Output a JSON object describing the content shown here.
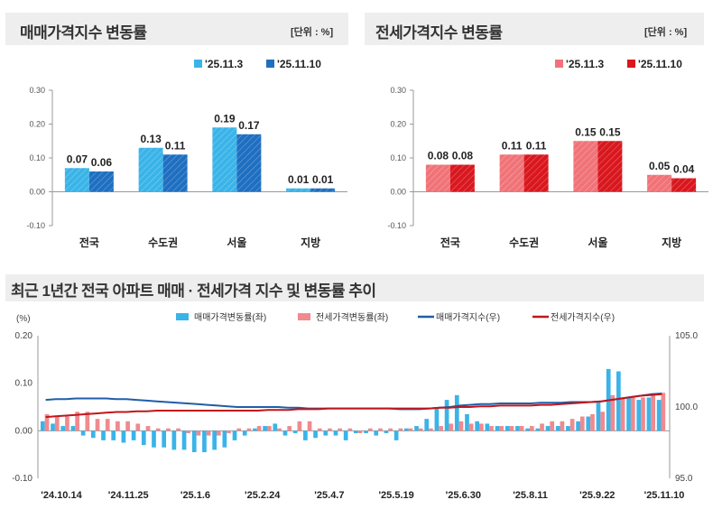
{
  "chart_data": [
    {
      "type": "bar",
      "title": "매매가격지수 변동률",
      "unit_label": "[단위 : %]",
      "categories": [
        "전국",
        "수도권",
        "서울",
        "지방"
      ],
      "ylim": [
        -0.1,
        0.3
      ],
      "yticks": [
        "-0.10",
        "0.00",
        "0.10",
        "0.20",
        "0.30"
      ],
      "legend_position": "top-right",
      "series": [
        {
          "name": "'25.11.3",
          "values": [
            0.07,
            0.13,
            0.19,
            0.01
          ],
          "labels": [
            "0.07",
            "0.13",
            "0.19",
            "0.01"
          ],
          "color": "#3ab4e8"
        },
        {
          "name": "'25.11.10",
          "values": [
            0.06,
            0.11,
            0.17,
            0.01
          ],
          "labels": [
            "0.06",
            "0.11",
            "0.17",
            "0.01"
          ],
          "color": "#1f6fc1"
        }
      ]
    },
    {
      "type": "bar",
      "title": "전세가격지수 변동률",
      "unit_label": "[단위 : %]",
      "categories": [
        "전국",
        "수도권",
        "서울",
        "지방"
      ],
      "ylim": [
        -0.1,
        0.3
      ],
      "yticks": [
        "-0.10",
        "0.00",
        "0.10",
        "0.20",
        "0.30"
      ],
      "legend_position": "top-right",
      "series": [
        {
          "name": "'25.11.3",
          "values": [
            0.08,
            0.11,
            0.15,
            0.05
          ],
          "labels": [
            "0.08",
            "0.11",
            "0.15",
            "0.05"
          ],
          "color": "#f07378"
        },
        {
          "name": "'25.11.10",
          "values": [
            0.08,
            0.11,
            0.15,
            0.04
          ],
          "labels": [
            "0.08",
            "0.11",
            "0.15",
            "0.04"
          ],
          "color": "#d9171e"
        }
      ]
    },
    {
      "type": "bar",
      "title": "최근 1년간 전국 아파트 매매 · 전세가격 지수 및 변동률 추이",
      "left_axis_label": "(%)",
      "ylim_left": [
        -0.1,
        0.2
      ],
      "yticks_left": [
        "-0.10",
        "0.00",
        "0.10",
        "0.20"
      ],
      "ylim_right": [
        95.0,
        105.0
      ],
      "yticks_right": [
        "95.0",
        "100.0",
        "105.0"
      ],
      "x_tick_labels": [
        "'24.10.14",
        "'24.11.25",
        "'25.1.6",
        "'25.2.24",
        "'25.4.7",
        "'25.5.19",
        "'25.6.30",
        "'25.8.11",
        "'25.9.22",
        "'25.11.10"
      ],
      "legend_position": "top",
      "series": [
        {
          "name": "매매가격변동률(좌)",
          "kind": "bar",
          "color": "#3ab4e8",
          "values": [
            0.02,
            0.015,
            0.01,
            0.01,
            -0.01,
            -0.015,
            -0.02,
            -0.02,
            -0.025,
            -0.02,
            -0.03,
            -0.035,
            -0.035,
            -0.04,
            -0.04,
            -0.045,
            -0.045,
            -0.04,
            -0.035,
            -0.02,
            -0.01,
            0.005,
            0.01,
            0.015,
            -0.01,
            -0.005,
            -0.02,
            -0.015,
            -0.01,
            -0.01,
            -0.02,
            -0.005,
            -0.005,
            -0.01,
            -0.005,
            -0.02,
            0.005,
            0.01,
            0.025,
            0.05,
            0.065,
            0.075,
            0.035,
            0.02,
            0.015,
            0.01,
            0.01,
            0.01,
            0.005,
            0.005,
            0.01,
            0.01,
            0.01,
            0.02,
            0.03,
            0.06,
            0.13,
            0.125,
            0.07,
            0.065,
            0.07,
            0.065
          ]
        },
        {
          "name": "전세가격변동률(좌)",
          "kind": "bar",
          "color": "#f08a8e",
          "values": [
            0.035,
            0.03,
            0.03,
            0.04,
            0.04,
            0.025,
            0.025,
            0.02,
            0.02,
            0.015,
            0.01,
            0.005,
            0.005,
            0.005,
            -0.005,
            -0.01,
            -0.01,
            -0.01,
            -0.005,
            0.005,
            0.005,
            0.01,
            0.01,
            0.005,
            0.01,
            0.02,
            0.02,
            0.005,
            0.005,
            0.005,
            0.005,
            -0.005,
            0.005,
            0.005,
            0.005,
            0.005,
            0.005,
            0.005,
            0.005,
            0.01,
            0.015,
            0.02,
            0.015,
            0.015,
            0.01,
            0.01,
            0.01,
            0.01,
            0.01,
            0.015,
            0.02,
            0.02,
            0.025,
            0.03,
            0.035,
            0.04,
            0.075,
            0.07,
            0.07,
            0.07,
            0.075,
            0.08
          ]
        },
        {
          "name": "매매가격지수(우)",
          "kind": "line",
          "color": "#1f5ea8",
          "values": [
            100.5,
            100.55,
            100.55,
            100.6,
            100.6,
            100.6,
            100.6,
            100.55,
            100.55,
            100.5,
            100.45,
            100.4,
            100.35,
            100.3,
            100.25,
            100.2,
            100.15,
            100.1,
            100.05,
            100.0,
            100.0,
            100.0,
            100.0,
            100.0,
            99.95,
            99.95,
            99.9,
            99.9,
            99.9,
            99.9,
            99.9,
            99.9,
            99.9,
            99.9,
            99.9,
            99.85,
            99.85,
            99.85,
            99.9,
            99.95,
            100.0,
            100.1,
            100.15,
            100.2,
            100.2,
            100.25,
            100.25,
            100.25,
            100.25,
            100.3,
            100.3,
            100.3,
            100.35,
            100.35,
            100.35,
            100.4,
            100.5,
            100.6,
            100.7,
            100.8,
            100.9,
            100.95
          ]
        },
        {
          "name": "전세가격지수(우)",
          "kind": "line",
          "color": "#c0161c",
          "values": [
            99.3,
            99.35,
            99.4,
            99.45,
            99.5,
            99.55,
            99.6,
            99.65,
            99.65,
            99.7,
            99.7,
            99.75,
            99.75,
            99.75,
            99.75,
            99.75,
            99.75,
            99.75,
            99.75,
            99.75,
            99.75,
            99.75,
            99.8,
            99.8,
            99.8,
            99.85,
            99.85,
            99.85,
            99.9,
            99.9,
            99.9,
            99.9,
            99.9,
            99.9,
            99.9,
            99.9,
            99.9,
            99.9,
            99.9,
            99.95,
            99.95,
            100.0,
            100.0,
            100.05,
            100.05,
            100.1,
            100.1,
            100.1,
            100.1,
            100.15,
            100.15,
            100.2,
            100.25,
            100.3,
            100.35,
            100.4,
            100.5,
            100.6,
            100.7,
            100.8,
            100.85,
            100.9
          ]
        }
      ]
    }
  ]
}
